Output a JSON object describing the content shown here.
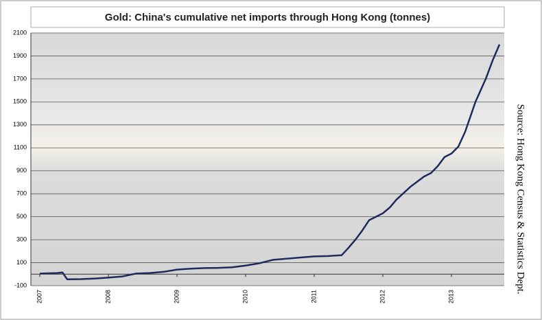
{
  "chart_data": {
    "type": "line",
    "title": "Gold: China's cumulative net imports through Hong Kong (tonnes)",
    "annotation": "Source: Hong Kong Census & Statistics Dept.",
    "x": [
      2007.0,
      2007.25,
      2007.33,
      2007.4,
      2007.6,
      2007.8,
      2008.0,
      2008.2,
      2008.4,
      2008.6,
      2008.8,
      2009.0,
      2009.2,
      2009.4,
      2009.6,
      2009.8,
      2010.0,
      2010.2,
      2010.4,
      2010.6,
      2010.8,
      2011.0,
      2011.2,
      2011.4,
      2011.5,
      2011.6,
      2011.7,
      2011.8,
      2012.0,
      2012.1,
      2012.2,
      2012.4,
      2012.6,
      2012.7,
      2012.8,
      2012.9,
      2013.0,
      2013.1,
      2013.2,
      2013.35,
      2013.5,
      2013.6,
      2013.7
    ],
    "series": [
      {
        "name": "Cumulative net imports",
        "color": "#1c2a5c",
        "values": [
          5,
          10,
          15,
          -45,
          -43,
          -38,
          -30,
          -20,
          5,
          10,
          20,
          40,
          48,
          53,
          55,
          60,
          75,
          95,
          125,
          135,
          145,
          155,
          158,
          165,
          230,
          300,
          380,
          470,
          530,
          580,
          650,
          760,
          850,
          880,
          940,
          1020,
          1050,
          1110,
          1240,
          1500,
          1700,
          1860,
          2000
        ]
      }
    ],
    "xlim": [
      2006.87,
      2013.77
    ],
    "xticks": [
      2007,
      2008,
      2009,
      2010,
      2011,
      2012,
      2013
    ],
    "ylim": [
      -100,
      2100
    ],
    "yticks": [
      -100,
      100,
      300,
      500,
      700,
      900,
      1100,
      1300,
      1500,
      1700,
      1900,
      2100
    ],
    "grid": true
  }
}
